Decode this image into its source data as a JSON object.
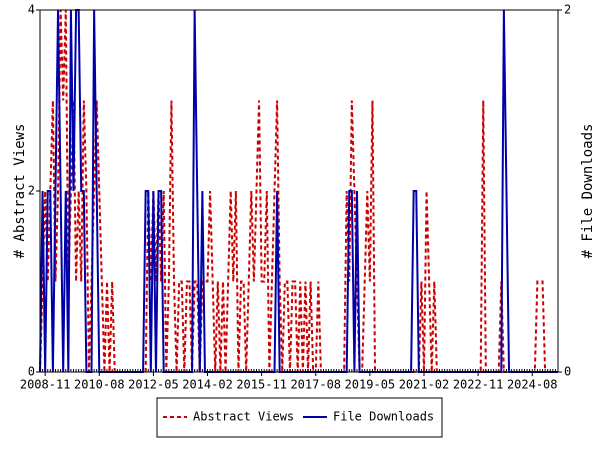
{
  "chart_data": {
    "type": "line",
    "y_label": "# Abstract Views",
    "y2_label": "# File Downloads",
    "x": [
      "2008-09",
      "2008-10",
      "2008-11",
      "2008-12",
      "2009-01",
      "2009-02",
      "2009-03",
      "2009-04",
      "2009-05",
      "2009-06",
      "2009-07",
      "2009-08",
      "2009-09",
      "2009-10",
      "2009-11",
      "2009-12",
      "2010-01",
      "2010-02",
      "2010-03",
      "2010-04",
      "2010-05",
      "2010-06",
      "2010-07",
      "2010-08",
      "2010-09",
      "2010-10",
      "2010-11",
      "2010-12",
      "2011-01",
      "2011-02",
      "2011-03",
      "2011-04",
      "2011-05",
      "2011-06",
      "2011-07",
      "2011-08",
      "2011-09",
      "2011-10",
      "2011-11",
      "2011-12",
      "2012-01",
      "2012-02",
      "2012-03",
      "2012-04",
      "2012-05",
      "2012-06",
      "2012-07",
      "2012-08",
      "2012-09",
      "2012-10",
      "2012-11",
      "2012-12",
      "2013-01",
      "2013-02",
      "2013-03",
      "2013-04",
      "2013-05",
      "2013-06",
      "2013-07",
      "2013-08",
      "2013-09",
      "2013-10",
      "2013-11",
      "2013-12",
      "2014-01",
      "2014-02",
      "2014-03",
      "2014-04",
      "2014-05",
      "2014-06",
      "2014-07",
      "2014-08",
      "2014-09",
      "2014-10",
      "2014-11",
      "2014-12",
      "2015-01",
      "2015-02",
      "2015-03",
      "2015-04",
      "2015-05",
      "2015-06",
      "2015-07",
      "2015-08",
      "2015-09",
      "2015-10",
      "2015-11",
      "2015-12",
      "2016-01",
      "2016-02",
      "2016-03",
      "2016-04",
      "2016-05",
      "2016-06",
      "2016-07",
      "2016-08",
      "2016-09",
      "2016-10",
      "2016-11",
      "2016-12",
      "2017-01",
      "2017-02",
      "2017-03",
      "2017-04",
      "2017-05",
      "2017-06",
      "2017-07",
      "2017-08",
      "2017-09",
      "2017-10",
      "2017-11",
      "2017-12",
      "2018-01",
      "2018-02",
      "2018-03",
      "2018-04",
      "2018-05",
      "2018-06",
      "2018-07",
      "2018-08",
      "2018-09",
      "2018-10",
      "2018-11",
      "2018-12",
      "2019-01",
      "2019-02",
      "2019-03",
      "2019-04",
      "2019-05",
      "2019-06",
      "2019-07",
      "2019-08",
      "2019-09",
      "2019-10",
      "2019-11",
      "2019-12",
      "2020-01",
      "2020-02",
      "2020-03",
      "2020-04",
      "2020-05",
      "2020-06",
      "2020-07",
      "2020-08",
      "2020-09",
      "2020-10",
      "2020-11",
      "2020-12",
      "2021-01",
      "2021-02",
      "2021-03",
      "2021-04",
      "2021-05",
      "2021-06",
      "2021-07",
      "2021-08",
      "2021-09",
      "2021-10",
      "2021-11",
      "2021-12",
      "2022-01",
      "2022-02",
      "2022-03",
      "2022-04",
      "2022-05",
      "2022-06",
      "2022-07",
      "2022-08",
      "2022-09",
      "2022-10",
      "2022-11",
      "2022-12",
      "2023-01",
      "2023-02",
      "2023-03",
      "2023-04",
      "2023-05",
      "2023-06",
      "2023-07",
      "2023-08",
      "2023-09",
      "2023-10",
      "2023-11",
      "2023-12",
      "2024-01",
      "2024-02",
      "2024-03",
      "2024-04",
      "2024-05",
      "2024-06",
      "2024-07",
      "2024-08",
      "2024-09",
      "2024-10",
      "2024-11",
      "2024-12",
      "2025-01",
      "2025-02",
      "2025-03",
      "2025-04",
      "2025-05",
      "2025-06"
    ],
    "series": [
      {
        "name": "Abstract Views",
        "color": "#cc0000",
        "dash": true,
        "values": [
          0,
          1,
          2,
          1,
          2,
          3,
          1,
          2,
          4,
          3,
          4,
          1,
          2,
          3,
          1,
          2,
          1,
          3,
          2,
          0,
          1,
          2,
          3,
          2,
          1,
          0,
          1,
          0,
          1,
          0,
          0,
          0,
          0,
          0,
          0,
          0,
          0,
          0,
          0,
          0,
          0,
          0,
          2,
          1,
          2,
          1,
          2,
          1,
          2,
          0,
          1,
          3,
          1,
          0,
          1,
          1,
          0,
          1,
          1,
          0,
          1,
          1,
          0,
          1,
          1,
          1,
          2,
          1,
          0,
          1,
          0,
          1,
          0,
          1,
          2,
          1,
          2,
          0,
          1,
          1,
          0,
          1,
          2,
          1,
          2,
          3,
          1,
          1,
          2,
          0,
          1,
          2,
          3,
          1,
          0,
          1,
          1,
          0,
          1,
          1,
          0,
          1,
          0,
          1,
          0,
          1,
          0,
          0,
          1,
          0,
          0,
          0,
          0,
          0,
          0,
          0,
          0,
          0,
          0,
          2,
          1,
          3,
          2,
          1,
          0,
          0,
          1,
          2,
          1,
          3,
          0,
          0,
          0,
          0,
          0,
          0,
          0,
          0,
          0,
          0,
          0,
          0,
          0,
          0,
          0,
          0,
          0,
          0,
          1,
          0,
          2,
          1,
          0,
          1,
          0,
          0,
          0,
          0,
          0,
          0,
          0,
          0,
          0,
          0,
          0,
          0,
          0,
          0,
          0,
          0,
          0,
          0,
          3,
          0,
          0,
          0,
          0,
          0,
          0,
          1,
          0,
          0,
          0,
          0,
          0,
          0,
          0,
          0,
          0,
          0,
          0,
          0,
          0,
          1,
          1,
          1,
          0,
          0,
          0,
          0,
          0,
          0
        ]
      },
      {
        "name": "File Downloads",
        "color": "#0000aa",
        "axis": "y2",
        "dash": false,
        "values": [
          0,
          1,
          0,
          1,
          1,
          0,
          1,
          2,
          1,
          0,
          1,
          0,
          2,
          1,
          2,
          2,
          1,
          1,
          0,
          0,
          0,
          2,
          1,
          0,
          0,
          0,
          0,
          0,
          0,
          0,
          0,
          0,
          0,
          0,
          0,
          0,
          0,
          0,
          0,
          0,
          0,
          1,
          1,
          0,
          1,
          0,
          1,
          1,
          0,
          0,
          0,
          0,
          0,
          0,
          0,
          0,
          0,
          0,
          0,
          0,
          2,
          1,
          0,
          1,
          0,
          0,
          0,
          0,
          0,
          0,
          0,
          0,
          0,
          0,
          0,
          0,
          0,
          0,
          0,
          0,
          0,
          0,
          0,
          0,
          0,
          0,
          0,
          0,
          0,
          0,
          0,
          0,
          1,
          0,
          0,
          0,
          0,
          0,
          0,
          0,
          0,
          0,
          0,
          0,
          0,
          0,
          0,
          0,
          0,
          0,
          0,
          0,
          0,
          0,
          0,
          0,
          0,
          0,
          0,
          0,
          1,
          1,
          0,
          1,
          0,
          0,
          0,
          0,
          0,
          0,
          0,
          0,
          0,
          0,
          0,
          0,
          0,
          0,
          0,
          0,
          0,
          0,
          0,
          0,
          0,
          1,
          1,
          0,
          0,
          0,
          0,
          0,
          0,
          0,
          0,
          0,
          0,
          0,
          0,
          0,
          0,
          0,
          0,
          0,
          0,
          0,
          0,
          0,
          0,
          0,
          0,
          0,
          0,
          0,
          0,
          0,
          0,
          0,
          0,
          0,
          2,
          1,
          0,
          0,
          0,
          0,
          0,
          0,
          0,
          0,
          0,
          0,
          0,
          0,
          0,
          0,
          0,
          0,
          0,
          0,
          0,
          0
        ]
      }
    ],
    "xlim": [
      "2008-09",
      "2025-06"
    ],
    "xticks": [
      "2008-11",
      "2010-08",
      "2012-05",
      "2014-02",
      "2015-11",
      "2017-08",
      "2019-05",
      "2021-02",
      "2022-11",
      "2024-08"
    ],
    "ylim": [
      0,
      4
    ],
    "yticks": [
      0,
      2,
      4
    ],
    "y2lim": [
      0,
      2
    ],
    "y2ticks": [
      0,
      2
    ]
  }
}
